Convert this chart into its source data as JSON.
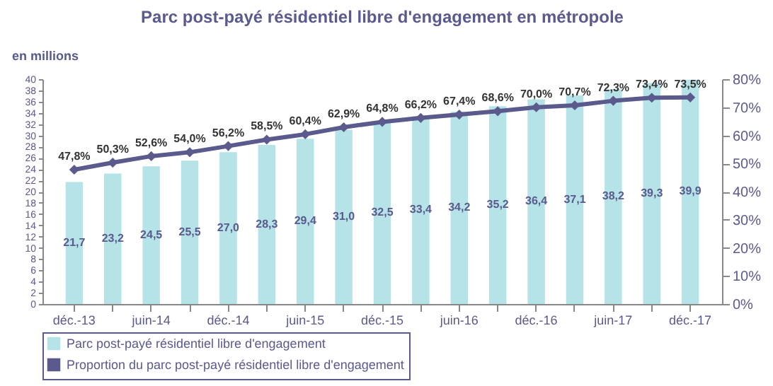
{
  "chart_data": {
    "type": "bar",
    "title": "Parc post-payé résidentiel libre d'engagement en métropole",
    "ylabel": "en millions",
    "categories": [
      "déc.-13",
      null,
      "juin-14",
      null,
      "déc.-14",
      null,
      "juin-15",
      null,
      "déc.-15",
      null,
      "juin-16",
      null,
      "déc.-16",
      null,
      "juin-17",
      null,
      "déc.-17"
    ],
    "series": [
      {
        "name": "Parc post-payé résidentiel libre d'engagement",
        "color": "#b5e3e8",
        "values": [
          21.7,
          23.2,
          24.5,
          25.5,
          27.0,
          28.3,
          29.4,
          31.0,
          32.5,
          33.4,
          34.2,
          35.2,
          36.4,
          37.1,
          38.2,
          39.3,
          39.9
        ],
        "value_labels": [
          "21,7",
          "23,2",
          "24,5",
          "25,5",
          "27,0",
          "28,3",
          "29,4",
          "31,0",
          "32,5",
          "33,4",
          "34,2",
          "35,2",
          "36,4",
          "37,1",
          "38,2",
          "39,3",
          "39,9"
        ]
      },
      {
        "name": "Proportion du parc post-payé résidentiel libre d'engagement",
        "type": "line",
        "axis": "y2",
        "color": "#5a5a8c",
        "values": [
          47.8,
          50.3,
          52.6,
          54.0,
          56.2,
          58.5,
          60.4,
          62.9,
          64.8,
          66.2,
          67.4,
          68.6,
          70.0,
          70.7,
          72.3,
          73.4,
          73.5
        ],
        "value_labels": [
          "47,8%",
          "50,3%",
          "52,6%",
          "54,0%",
          "56,2%",
          "58,5%",
          "60,4%",
          "62,9%",
          "64,8%",
          "66,2%",
          "67,4%",
          "68,6%",
          "70,0%",
          "70,7%",
          "72,3%",
          "73,4%",
          "73,5%"
        ]
      }
    ],
    "ylim": [
      0,
      40
    ],
    "yticks": [
      0,
      2,
      4,
      6,
      8,
      10,
      12,
      14,
      16,
      18,
      20,
      22,
      24,
      26,
      28,
      30,
      32,
      34,
      36,
      38,
      40
    ],
    "y2lim": [
      0,
      80
    ],
    "y2ticks": [
      {
        "value": 0,
        "label": "0%"
      },
      {
        "value": 10,
        "label": "10%"
      },
      {
        "value": 20,
        "label": "20%"
      },
      {
        "value": 30,
        "label": "30%"
      },
      {
        "value": 40,
        "label": "40%"
      },
      {
        "value": 50,
        "label": "50%"
      },
      {
        "value": 60,
        "label": "60%"
      },
      {
        "value": 70,
        "label": "70%"
      },
      {
        "value": 80,
        "label": "80%"
      }
    ],
    "marker": "diamond",
    "line_style": "solid",
    "grid": false,
    "legend": "bottom"
  }
}
